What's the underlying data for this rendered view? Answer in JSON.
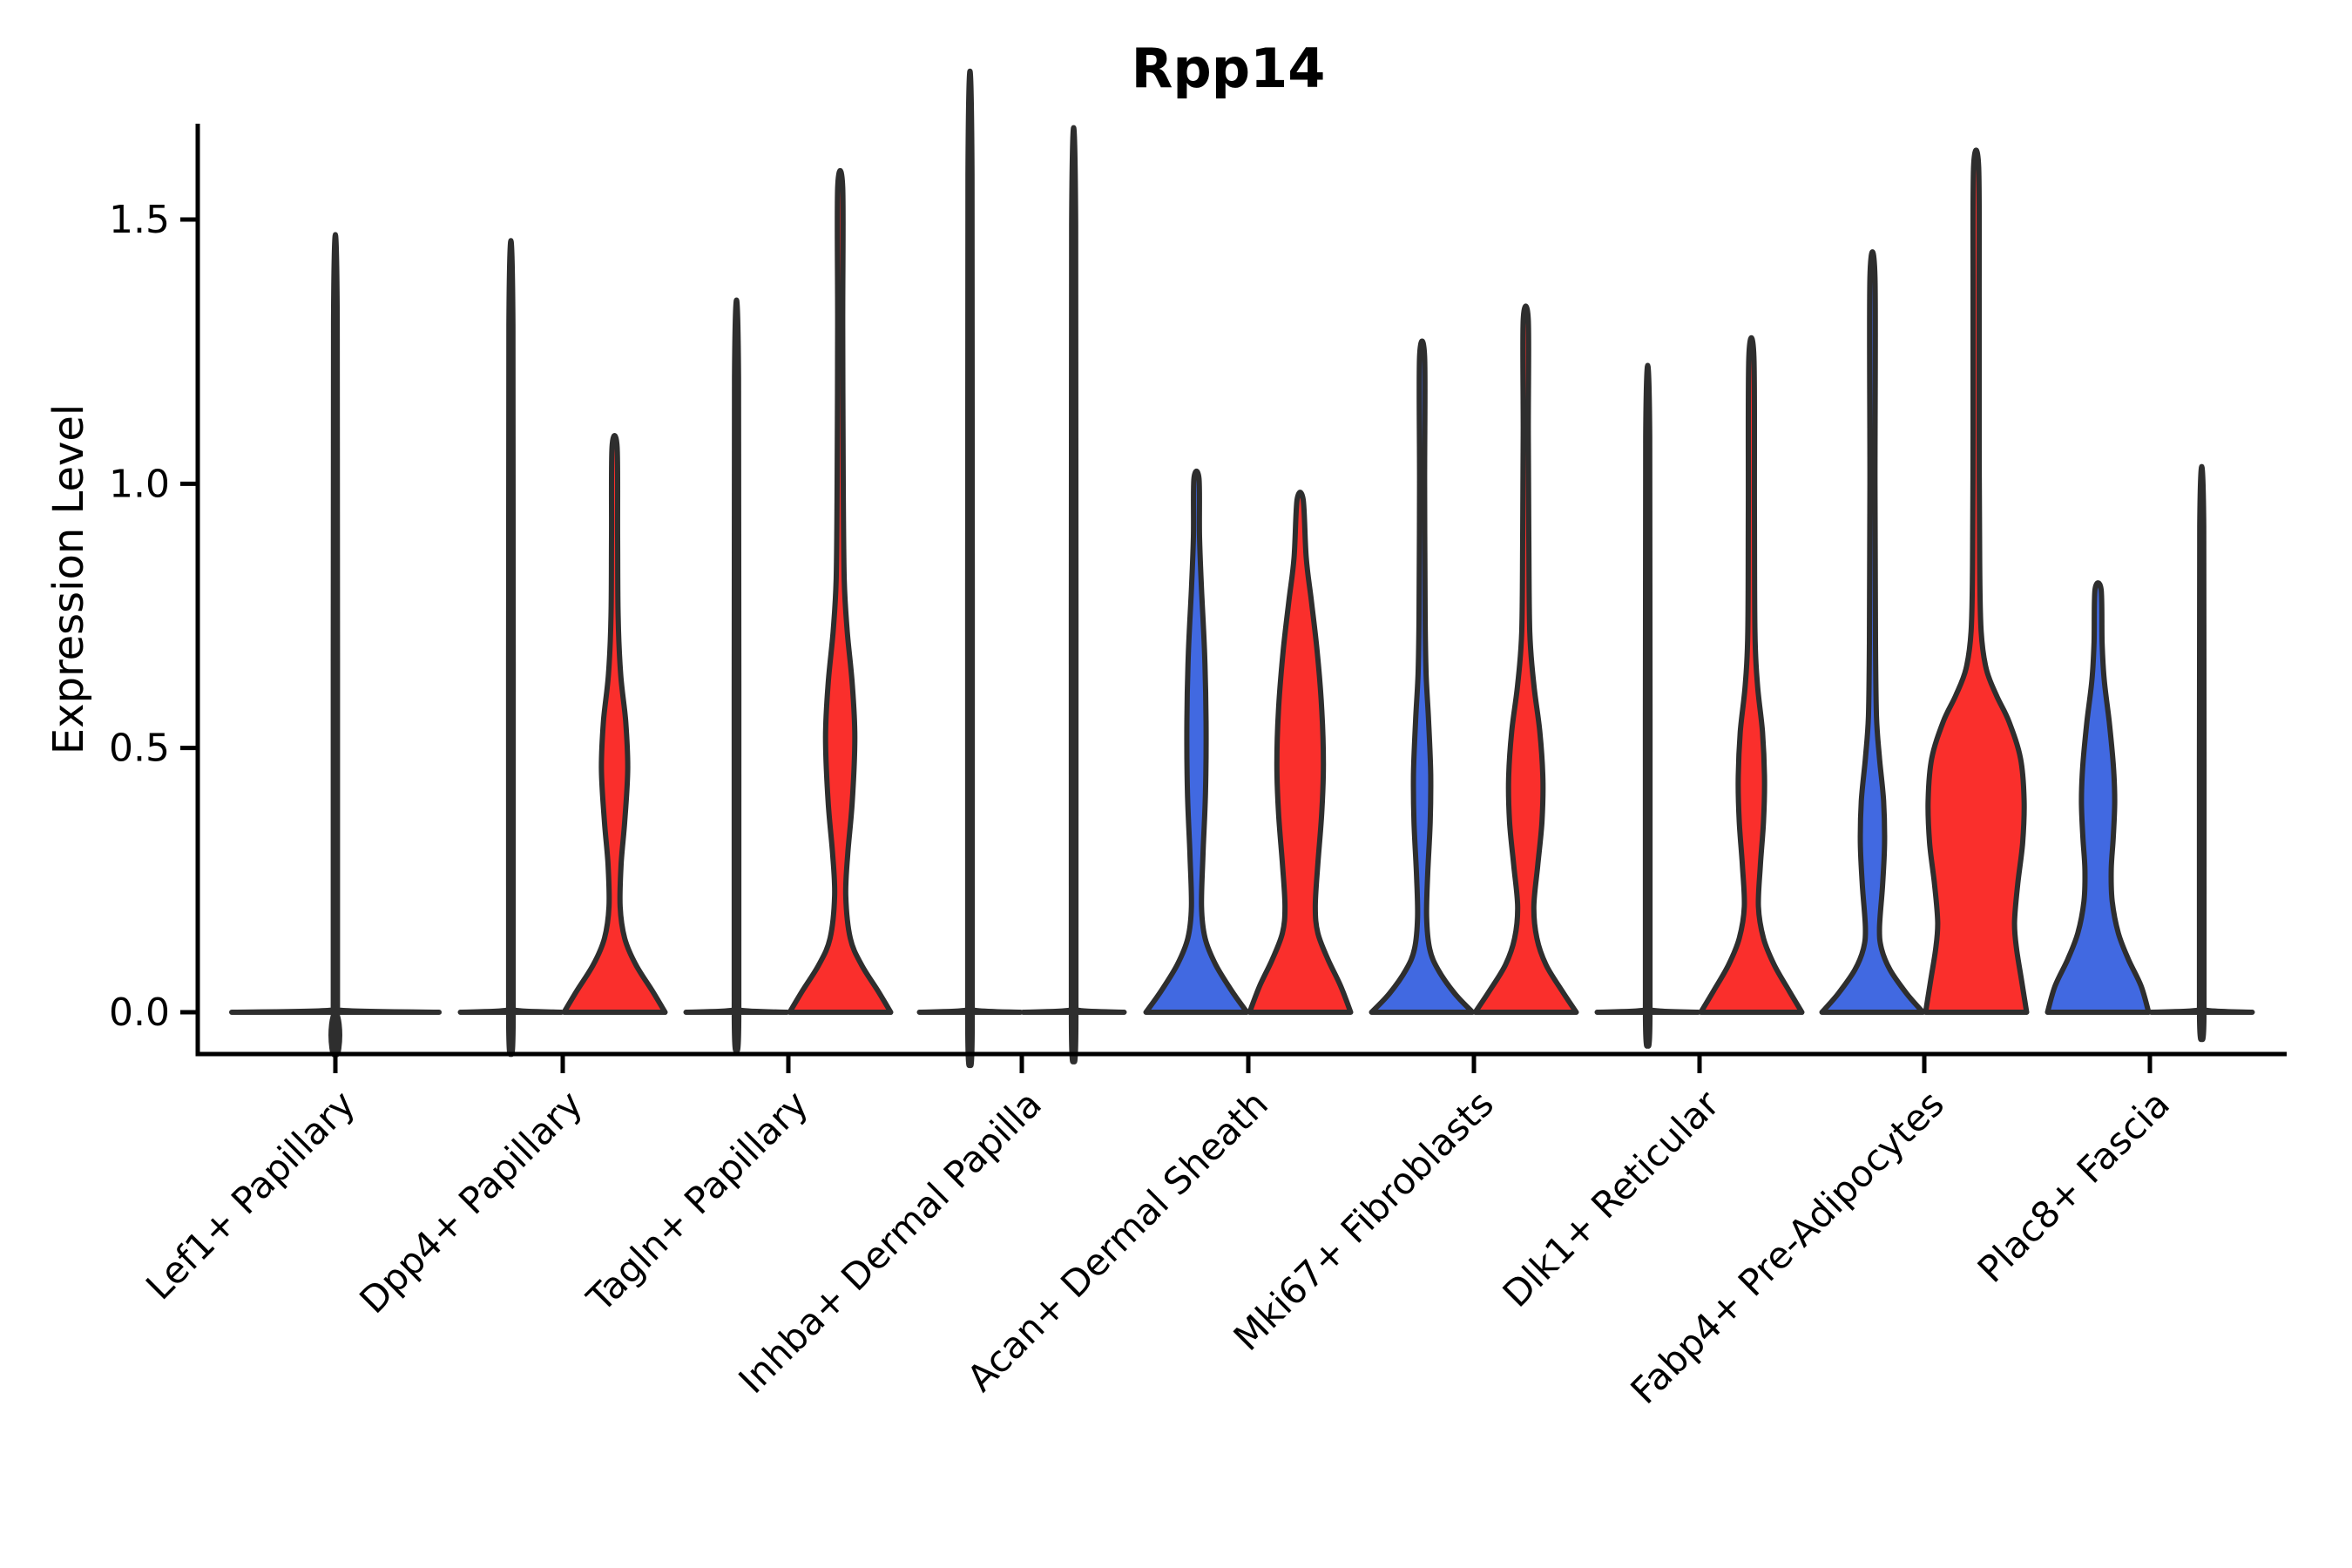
{
  "title": "Rpp14",
  "chart_data": {
    "type": "violin",
    "title": "Rpp14",
    "xlabel": "",
    "ylabel": "Expression Level",
    "ytick_labels": [
      "0.0",
      "0.5",
      "1.0",
      "1.5"
    ],
    "ytick_values": [
      0.0,
      0.5,
      1.0,
      1.5
    ],
    "ylim": [
      -0.08,
      1.68
    ],
    "x_tick_rotation_deg": 45,
    "grid": "off",
    "legend": "none",
    "categories": [
      "Lef1+ Papillary",
      "Dpp4+ Papillary",
      "Tagln+ Papillary",
      "Inhba+ Dermal Papilla",
      "Acan+ Dermal Sheath",
      "Mki67+ Fibroblasts",
      "Dlk1+ Reticular",
      "Fabp4+ Pre-Adipocytes",
      "Plac8+ Fascia"
    ],
    "series_colors": {
      "blue": "#4169e1",
      "red": "#fa2f2c",
      "none": "none"
    },
    "edge_color": "#2e2e2e",
    "violins": [
      {
        "category": "Lef1+ Papillary",
        "category_index": 0,
        "side": "center",
        "color": "none",
        "max_expression": 1.31,
        "profile": [
          [
            0,
            1
          ],
          [
            0.004,
            0.035
          ],
          [
            0.02,
            0.02
          ],
          [
            1.31,
            0.018
          ]
        ]
      },
      {
        "category": "Dpp4+ Papillary",
        "category_index": 1,
        "side": "left",
        "color": "blue",
        "max_expression": 1.3,
        "profile": [
          [
            0,
            1
          ],
          [
            0.004,
            0.07
          ],
          [
            0.02,
            0.045
          ],
          [
            1.3,
            0.04
          ]
        ]
      },
      {
        "category": "Dpp4+ Papillary",
        "category_index": 1,
        "side": "right",
        "color": "red",
        "max_expression": 1.07,
        "profile": [
          [
            0,
            1
          ],
          [
            0.04,
            0.75
          ],
          [
            0.09,
            0.42
          ],
          [
            0.14,
            0.2
          ],
          [
            0.2,
            0.11
          ],
          [
            0.28,
            0.13
          ],
          [
            0.36,
            0.2
          ],
          [
            0.46,
            0.26
          ],
          [
            0.55,
            0.22
          ],
          [
            0.64,
            0.12
          ],
          [
            0.75,
            0.07
          ],
          [
            0.9,
            0.06
          ],
          [
            1.07,
            0.05
          ]
        ]
      },
      {
        "category": "Tagln+ Papillary",
        "category_index": 2,
        "side": "left",
        "color": "blue",
        "max_expression": 1.2,
        "profile": [
          [
            0,
            1
          ],
          [
            0.004,
            0.07
          ],
          [
            0.02,
            0.045
          ],
          [
            1.2,
            0.04
          ]
        ]
      },
      {
        "category": "Tagln+ Papillary",
        "category_index": 2,
        "side": "right",
        "color": "red",
        "max_expression": 1.56,
        "profile": [
          [
            0,
            1
          ],
          [
            0.04,
            0.75
          ],
          [
            0.09,
            0.42
          ],
          [
            0.14,
            0.2
          ],
          [
            0.22,
            0.11
          ],
          [
            0.3,
            0.15
          ],
          [
            0.4,
            0.24
          ],
          [
            0.52,
            0.29
          ],
          [
            0.62,
            0.24
          ],
          [
            0.72,
            0.14
          ],
          [
            0.82,
            0.08
          ],
          [
            1.0,
            0.06
          ],
          [
            1.3,
            0.05
          ],
          [
            1.56,
            0.05
          ]
        ]
      },
      {
        "category": "Inhba+ Dermal Papilla",
        "category_index": 3,
        "side": "left",
        "color": "blue",
        "max_expression": 1.585,
        "profile": [
          [
            0,
            1
          ],
          [
            0.004,
            0.07
          ],
          [
            0.02,
            0.045
          ],
          [
            1.585,
            0.04
          ]
        ]
      },
      {
        "category": "Inhba+ Dermal Papilla",
        "category_index": 3,
        "side": "right",
        "color": "red",
        "max_expression": 1.49,
        "profile": [
          [
            0,
            1
          ],
          [
            0.004,
            0.07
          ],
          [
            0.02,
            0.045
          ],
          [
            1.49,
            0.04
          ]
        ]
      },
      {
        "category": "Acan+ Dermal Sheath",
        "category_index": 4,
        "side": "left",
        "color": "blue",
        "max_expression": 1.01,
        "profile": [
          [
            0,
            1
          ],
          [
            0.04,
            0.7
          ],
          [
            0.09,
            0.38
          ],
          [
            0.14,
            0.17
          ],
          [
            0.2,
            0.1
          ],
          [
            0.3,
            0.13
          ],
          [
            0.42,
            0.18
          ],
          [
            0.55,
            0.19
          ],
          [
            0.68,
            0.16
          ],
          [
            0.8,
            0.1
          ],
          [
            0.9,
            0.06
          ],
          [
            1.01,
            0.05
          ]
        ]
      },
      {
        "category": "Acan+ Dermal Sheath",
        "category_index": 4,
        "side": "right",
        "color": "red",
        "max_expression": 0.97,
        "profile": [
          [
            0,
            1
          ],
          [
            0.05,
            0.8
          ],
          [
            0.1,
            0.55
          ],
          [
            0.15,
            0.35
          ],
          [
            0.2,
            0.3
          ],
          [
            0.28,
            0.35
          ],
          [
            0.38,
            0.43
          ],
          [
            0.47,
            0.46
          ],
          [
            0.57,
            0.43
          ],
          [
            0.68,
            0.34
          ],
          [
            0.78,
            0.22
          ],
          [
            0.86,
            0.12
          ],
          [
            0.97,
            0.06
          ]
        ]
      },
      {
        "category": "Mki67+ Fibroblasts",
        "category_index": 5,
        "side": "left",
        "color": "blue",
        "max_expression": 1.24,
        "profile": [
          [
            0,
            1
          ],
          [
            0.035,
            0.65
          ],
          [
            0.08,
            0.32
          ],
          [
            0.12,
            0.15
          ],
          [
            0.18,
            0.09
          ],
          [
            0.26,
            0.11
          ],
          [
            0.36,
            0.16
          ],
          [
            0.45,
            0.17
          ],
          [
            0.55,
            0.13
          ],
          [
            0.64,
            0.08
          ],
          [
            0.75,
            0.06
          ],
          [
            1.0,
            0.05
          ],
          [
            1.24,
            0.05
          ]
        ]
      },
      {
        "category": "Mki67+ Fibroblasts",
        "category_index": 5,
        "side": "right",
        "color": "red",
        "max_expression": 1.31,
        "profile": [
          [
            0,
            1
          ],
          [
            0.04,
            0.72
          ],
          [
            0.09,
            0.4
          ],
          [
            0.14,
            0.22
          ],
          [
            0.2,
            0.16
          ],
          [
            0.28,
            0.24
          ],
          [
            0.36,
            0.32
          ],
          [
            0.44,
            0.34
          ],
          [
            0.53,
            0.28
          ],
          [
            0.62,
            0.16
          ],
          [
            0.72,
            0.08
          ],
          [
            0.9,
            0.06
          ],
          [
            1.1,
            0.05
          ],
          [
            1.31,
            0.05
          ]
        ]
      },
      {
        "category": "Dlk1+ Reticular",
        "category_index": 6,
        "side": "left",
        "color": "blue",
        "max_expression": 1.09,
        "profile": [
          [
            0,
            1
          ],
          [
            0.004,
            0.07
          ],
          [
            0.02,
            0.045
          ],
          [
            1.09,
            0.04
          ]
        ]
      },
      {
        "category": "Dlk1+ Reticular",
        "category_index": 6,
        "side": "right",
        "color": "red",
        "max_expression": 1.24,
        "profile": [
          [
            0,
            1
          ],
          [
            0.04,
            0.75
          ],
          [
            0.09,
            0.45
          ],
          [
            0.14,
            0.24
          ],
          [
            0.2,
            0.14
          ],
          [
            0.28,
            0.18
          ],
          [
            0.36,
            0.24
          ],
          [
            0.44,
            0.26
          ],
          [
            0.53,
            0.22
          ],
          [
            0.62,
            0.12
          ],
          [
            0.72,
            0.07
          ],
          [
            0.95,
            0.06
          ],
          [
            1.24,
            0.05
          ]
        ]
      },
      {
        "category": "Fabp4+ Pre-Adipocytes",
        "category_index": 7,
        "side": "left",
        "color": "blue",
        "max_expression": 1.39,
        "profile": [
          [
            0,
            1
          ],
          [
            0.035,
            0.68
          ],
          [
            0.08,
            0.35
          ],
          [
            0.12,
            0.18
          ],
          [
            0.16,
            0.14
          ],
          [
            0.24,
            0.2
          ],
          [
            0.32,
            0.24
          ],
          [
            0.4,
            0.22
          ],
          [
            0.48,
            0.14
          ],
          [
            0.56,
            0.08
          ],
          [
            0.7,
            0.06
          ],
          [
            1.0,
            0.05
          ],
          [
            1.39,
            0.05
          ]
        ]
      },
      {
        "category": "Fabp4+ Pre-Adipocytes",
        "category_index": 7,
        "side": "right",
        "color": "red",
        "max_expression": 1.6,
        "profile": [
          [
            0,
            1
          ],
          [
            0.06,
            0.9
          ],
          [
            0.12,
            0.8
          ],
          [
            0.17,
            0.76
          ],
          [
            0.24,
            0.82
          ],
          [
            0.32,
            0.92
          ],
          [
            0.4,
            0.95
          ],
          [
            0.48,
            0.88
          ],
          [
            0.55,
            0.65
          ],
          [
            0.6,
            0.4
          ],
          [
            0.65,
            0.2
          ],
          [
            0.72,
            0.1
          ],
          [
            0.85,
            0.07
          ],
          [
            1.1,
            0.06
          ],
          [
            1.35,
            0.06
          ],
          [
            1.6,
            0.05
          ]
        ]
      },
      {
        "category": "Plac8+ Fascia",
        "category_index": 8,
        "side": "left",
        "color": "blue",
        "max_expression": 0.8,
        "profile": [
          [
            0,
            1
          ],
          [
            0.05,
            0.85
          ],
          [
            0.1,
            0.6
          ],
          [
            0.15,
            0.4
          ],
          [
            0.21,
            0.28
          ],
          [
            0.27,
            0.26
          ],
          [
            0.33,
            0.3
          ],
          [
            0.4,
            0.33
          ],
          [
            0.47,
            0.3
          ],
          [
            0.55,
            0.22
          ],
          [
            0.63,
            0.12
          ],
          [
            0.7,
            0.08
          ],
          [
            0.8,
            0.06
          ]
        ]
      },
      {
        "category": "Plac8+ Fascia",
        "category_index": 8,
        "side": "right",
        "color": "blue",
        "max_expression": 0.92,
        "profile": [
          [
            0,
            1
          ],
          [
            0.004,
            0.07
          ],
          [
            0.02,
            0.045
          ],
          [
            0.92,
            0.04
          ]
        ]
      }
    ]
  }
}
